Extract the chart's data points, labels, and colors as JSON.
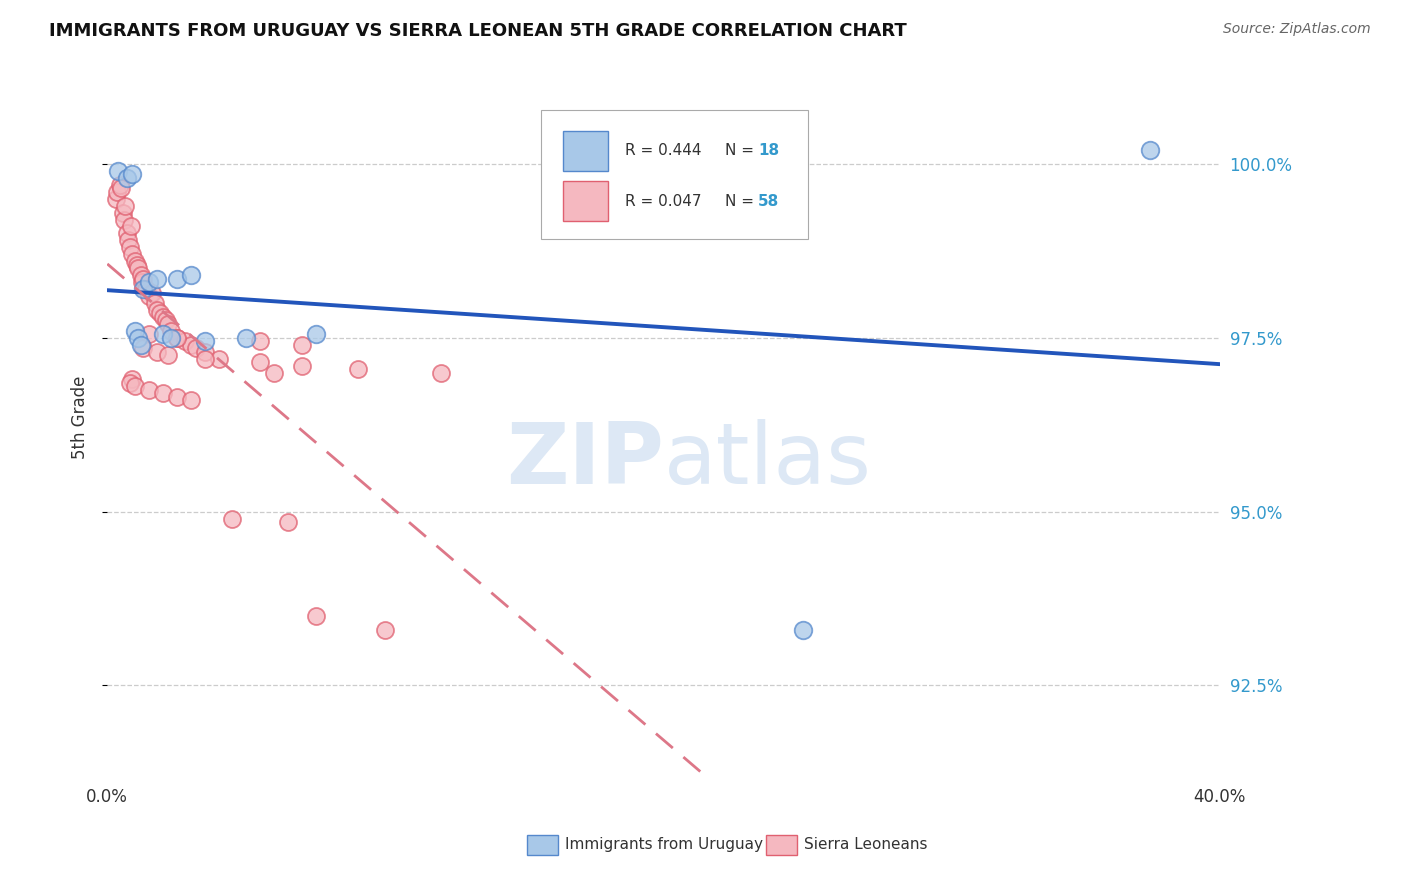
{
  "title": "IMMIGRANTS FROM URUGUAY VS SIERRA LEONEAN 5TH GRADE CORRELATION CHART",
  "source": "Source: ZipAtlas.com",
  "ylabel": "5th Grade",
  "ytick_values": [
    92.5,
    95.0,
    97.5,
    100.0
  ],
  "xlim": [
    0.0,
    40.0
  ],
  "ylim": [
    91.2,
    101.5
  ],
  "legend_blue_label": "Immigrants from Uruguay",
  "legend_pink_label": "Sierra Leoneans",
  "legend_R_blue": "R = 0.444",
  "legend_N_blue": 18,
  "legend_R_pink": "R = 0.047",
  "legend_N_pink": 58,
  "blue_fill": "#a8c8e8",
  "blue_edge": "#5588cc",
  "pink_fill": "#f5b8c0",
  "pink_edge": "#e06070",
  "blue_line_color": "#2255bb",
  "pink_line_color": "#dd7788",
  "watermark_color": "#dde8f5",
  "blue_points_x": [
    0.4,
    0.7,
    0.9,
    1.0,
    1.1,
    1.2,
    1.3,
    1.5,
    1.8,
    2.0,
    2.3,
    2.5,
    3.0,
    3.5,
    5.0,
    7.5,
    25.0,
    37.5
  ],
  "blue_points_y": [
    99.9,
    99.8,
    99.85,
    97.6,
    97.5,
    97.4,
    98.2,
    98.3,
    98.35,
    97.55,
    97.5,
    98.35,
    98.4,
    97.45,
    97.5,
    97.55,
    93.3,
    100.2
  ],
  "pink_points_x": [
    0.3,
    0.35,
    0.45,
    0.5,
    0.55,
    0.6,
    0.65,
    0.7,
    0.75,
    0.8,
    0.85,
    0.9,
    1.0,
    1.05,
    1.1,
    1.2,
    1.25,
    1.3,
    1.4,
    1.5,
    1.6,
    1.7,
    1.8,
    1.9,
    2.0,
    2.1,
    2.2,
    2.3,
    2.5,
    2.8,
    3.0,
    3.2,
    3.5,
    4.0,
    1.5,
    2.5,
    5.5,
    7.0,
    1.3,
    1.8,
    2.2,
    3.5,
    5.5,
    7.0,
    9.0,
    6.0,
    0.9,
    0.8,
    1.0,
    1.5,
    2.0,
    2.5,
    3.0,
    4.5,
    6.5,
    7.5,
    10.0,
    12.0
  ],
  "pink_points_y": [
    99.5,
    99.6,
    99.7,
    99.65,
    99.3,
    99.2,
    99.4,
    99.0,
    98.9,
    98.8,
    99.1,
    98.7,
    98.6,
    98.55,
    98.5,
    98.4,
    98.3,
    98.35,
    98.2,
    98.1,
    98.15,
    98.0,
    97.9,
    97.85,
    97.8,
    97.75,
    97.7,
    97.6,
    97.5,
    97.45,
    97.4,
    97.35,
    97.3,
    97.2,
    97.55,
    97.5,
    97.45,
    97.4,
    97.35,
    97.3,
    97.25,
    97.2,
    97.15,
    97.1,
    97.05,
    97.0,
    96.9,
    96.85,
    96.8,
    96.75,
    96.7,
    96.65,
    96.6,
    94.9,
    94.85,
    93.5,
    93.3,
    97.0
  ]
}
